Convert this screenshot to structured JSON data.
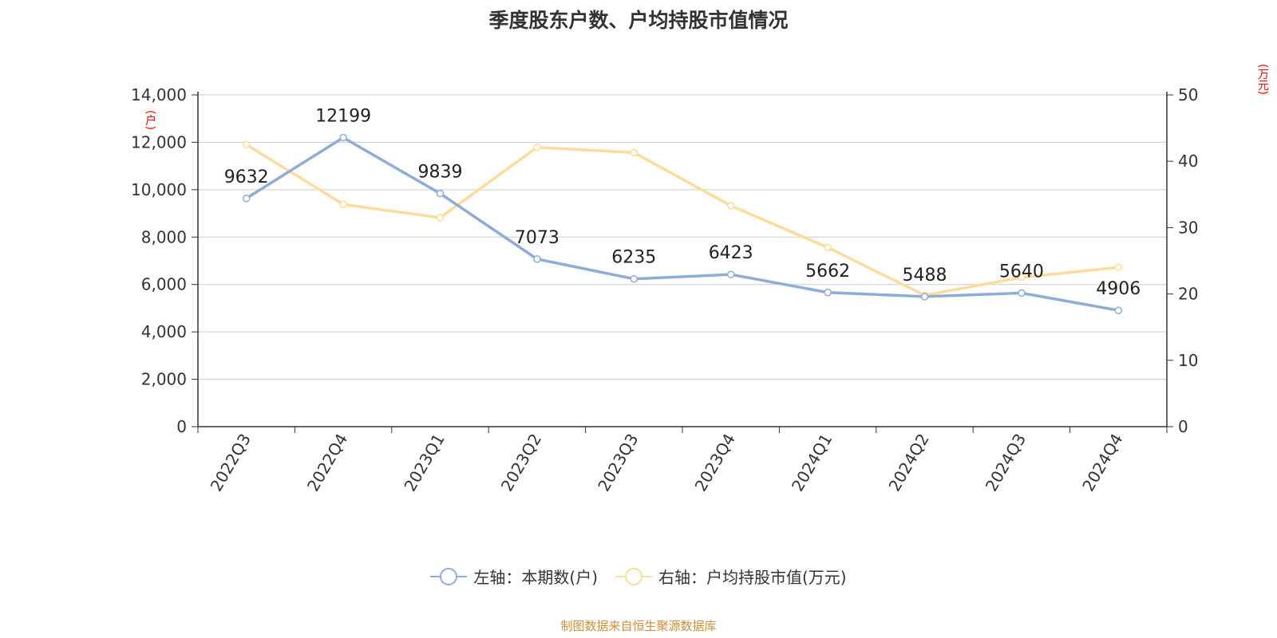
{
  "chart_data": {
    "type": "line",
    "title": "季度股东户数、户均持股市值情况",
    "categories": [
      "2022Q3",
      "2022Q4",
      "2023Q1",
      "2023Q2",
      "2023Q3",
      "2023Q4",
      "2024Q1",
      "2024Q2",
      "2024Q3",
      "2024Q4"
    ],
    "y_left": {
      "unit": "(户)",
      "ylim": [
        0,
        14000
      ],
      "ticks": [
        "0",
        "2,000",
        "4,000",
        "6,000",
        "8,000",
        "10,000",
        "12,000",
        "14,000"
      ]
    },
    "y_right": {
      "unit": "(万元)",
      "ylim": [
        0,
        50
      ],
      "ticks": [
        "0",
        "10",
        "20",
        "30",
        "40",
        "50"
      ]
    },
    "grid": true,
    "legend_position": "bottom",
    "series": [
      {
        "name": "左轴：本期数(户)",
        "axis": "left",
        "color": "#8eacd8",
        "values": [
          9632,
          12199,
          9839,
          7073,
          6235,
          6423,
          5662,
          5488,
          5640,
          4906
        ],
        "labels": [
          "9632",
          "12199",
          "9839",
          "7073",
          "6235",
          "6423",
          "5662",
          "5488",
          "5640",
          "4906"
        ]
      },
      {
        "name": "右轴：户均持股市值(万元)",
        "axis": "right",
        "color": "#fddc9b",
        "values": [
          42.5,
          33.5,
          31.5,
          42.1,
          41.3,
          33.3,
          27.0,
          19.8,
          22.5,
          24.0
        ]
      }
    ]
  },
  "footer": {
    "source": "制图数据来自恒生聚源数据库"
  }
}
